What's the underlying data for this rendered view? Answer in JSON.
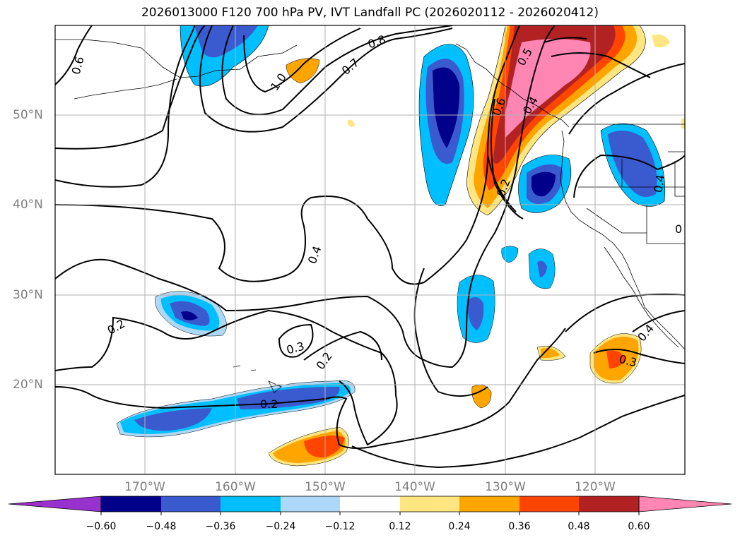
{
  "title": "2026013000 F120 700 hPa PV, IVT Landfall PC (2026020112 - 2026020412)",
  "lat_labels": [
    "50°N",
    "40°N",
    "30°N",
    "20°N"
  ],
  "lon_labels": [
    "170°W",
    "160°W",
    "150°W",
    "140°W",
    "130°W",
    "120°W"
  ],
  "contour_labels": [
    "0.6",
    "1.0",
    "0.8",
    "0.7",
    "0.5",
    "0.6",
    "0.4",
    "0.2",
    "0.4",
    "0.4",
    "0.2",
    "0.3",
    "0.2",
    "0.2",
    "0.4",
    "0.3",
    "0"
  ],
  "colorbar": {
    "ticks": [
      "−0.60",
      "−0.48",
      "−0.36",
      "−0.24",
      "−0.12",
      "0.12",
      "0.24",
      "0.36",
      "0.48",
      "0.60"
    ],
    "colors": [
      "#9932cc",
      "#00008b",
      "#3a5bd0",
      "#00bfff",
      "#add8f7",
      "#ffffff",
      "#ffe680",
      "#ffa500",
      "#ff4500",
      "#b22222",
      "#ff85b3"
    ]
  }
}
